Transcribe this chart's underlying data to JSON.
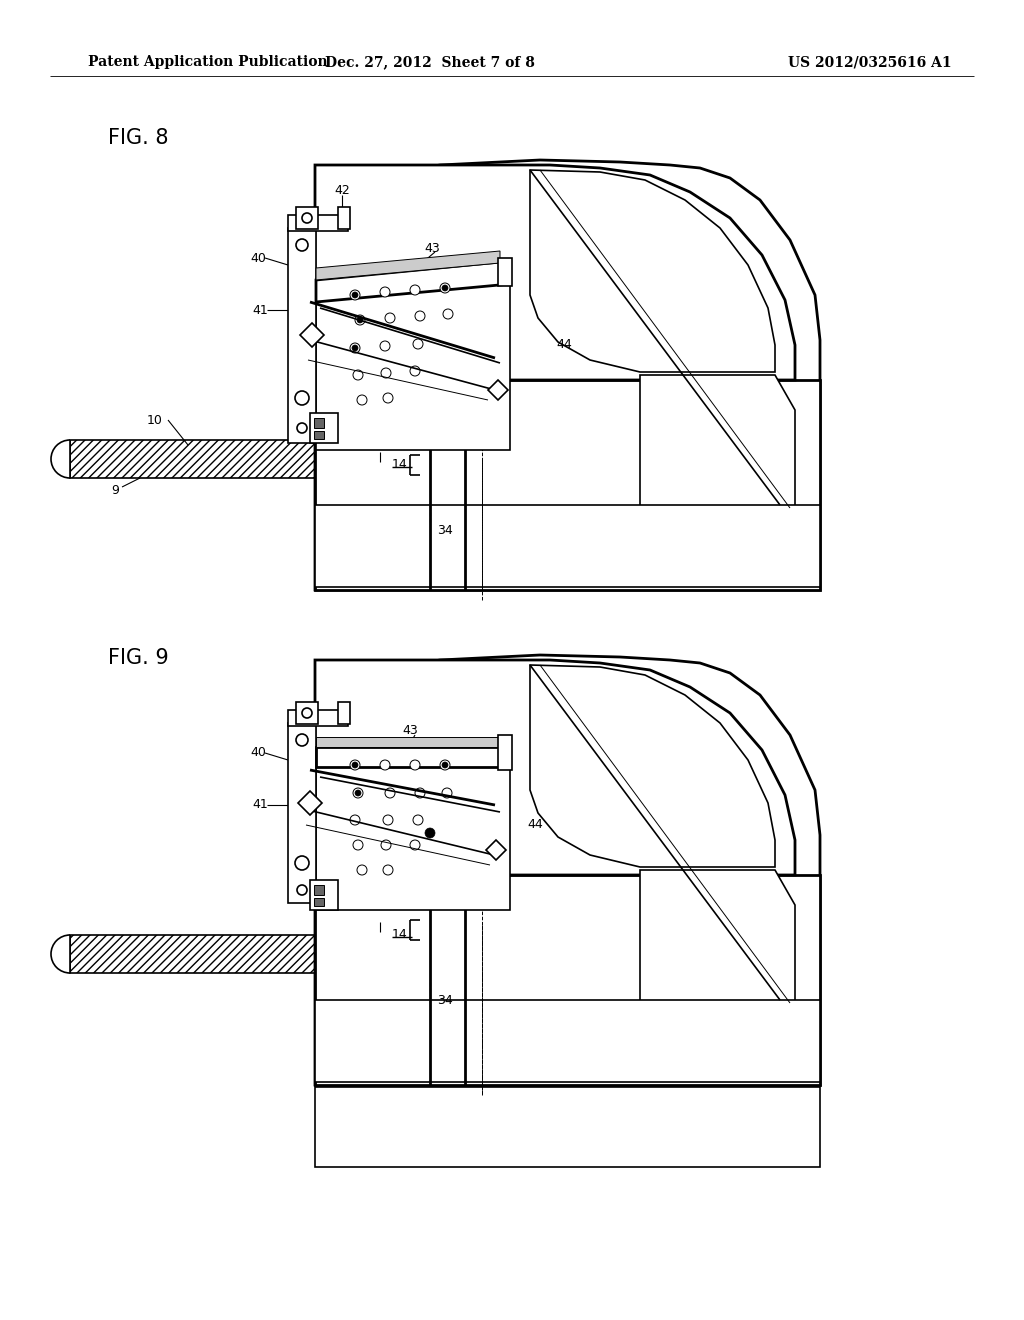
{
  "bg_color": "#ffffff",
  "line_color": "#000000",
  "header_left": "Patent Application Publication",
  "header_center": "Dec. 27, 2012  Sheet 7 of 8",
  "header_right": "US 2012/0325616 A1",
  "fig8_label": "FIG. 8",
  "fig9_label": "FIG. 9",
  "header_fontsize": 10,
  "label_fontsize": 15
}
